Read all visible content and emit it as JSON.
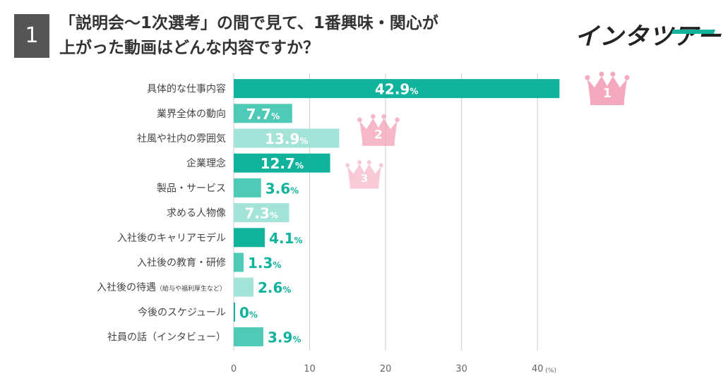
{
  "header": {
    "number": "1",
    "title_line1": "「説明会〜1次選考」の間で見て、1番興味・関心が",
    "title_line2": "上がった動画はどんな内容ですか？",
    "logo_text": "インタツアー"
  },
  "colors": {
    "top3": "#12b39c",
    "bar_dark": "#12b39c",
    "bar_mid": "#4fcab7",
    "bar_light": "#a3e3d8",
    "label_teal": "#12b39c",
    "crown_pink": "#f4a0b8",
    "header_box": "#555555"
  },
  "chart_data": {
    "type": "bar",
    "orientation": "horizontal",
    "categories": [
      "具体的な仕事内容",
      "業界全体の動向",
      "社風や社内の雰囲気",
      "企業理念",
      "製品・サービス",
      "求める人物像",
      "入社後のキャリアモデル",
      "入社後の教育・研修",
      "入社後の待遇",
      "今後のスケジュール",
      "社員の話（インタビュー）"
    ],
    "category_notes": [
      "",
      "",
      "",
      "",
      "",
      "",
      "",
      "",
      "（給与や福利厚生など）",
      "",
      ""
    ],
    "values": [
      42.9,
      7.7,
      13.9,
      12.7,
      3.6,
      7.3,
      4.1,
      1.3,
      2.6,
      0,
      3.9
    ],
    "bar_shades": [
      "dark",
      "mid",
      "light",
      "dark",
      "mid",
      "light",
      "dark",
      "mid",
      "light",
      "dark",
      "mid"
    ],
    "value_suffix": "%",
    "xlim": [
      0,
      45
    ],
    "xticks": [
      0,
      10,
      20,
      30,
      40
    ],
    "xunit": "(%)",
    "rank_crowns": [
      {
        "rank": "1",
        "category_index": 0
      },
      {
        "rank": "2",
        "category_index": 2
      },
      {
        "rank": "3",
        "category_index": 3
      }
    ]
  }
}
